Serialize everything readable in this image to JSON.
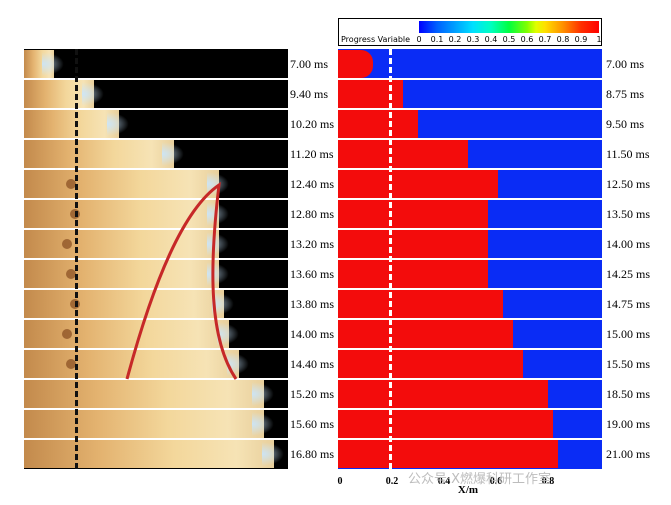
{
  "left_times": [
    "7.00 ms",
    "9.40 ms",
    "10.20 ms",
    "11.20 ms",
    "12.40 ms",
    "12.80 ms",
    "13.20 ms",
    "13.60 ms",
    "13.80 ms",
    "14.00 ms",
    "14.40 ms",
    "15.20 ms",
    "15.60 ms",
    "16.80 ms"
  ],
  "right_times": [
    "7.00 ms",
    "8.75 ms",
    "9.50 ms",
    "11.50 ms",
    "12.50 ms",
    "13.50 ms",
    "14.00 ms",
    "14.25 ms",
    "14.75 ms",
    "15.00 ms",
    "15.50 ms",
    "18.50 ms",
    "19.00 ms",
    "21.00 ms"
  ],
  "colorbar": {
    "title": "Progress Variable",
    "ticks": [
      "0",
      "0.1",
      "0.2",
      "0.3",
      "0.4",
      "0.5",
      "0.6",
      "0.7",
      "0.8",
      "0.9",
      "1"
    ]
  },
  "x_axis": {
    "label": "X/m",
    "ticks": [
      "0",
      "0.2",
      "0.4",
      "0.6",
      "0.8"
    ]
  },
  "watermark": "公众号·X燃爆科研工作室",
  "colors": {
    "burned": "#f30c0c",
    "unburned": "#0a2cf5",
    "curve": "#c62828"
  }
}
